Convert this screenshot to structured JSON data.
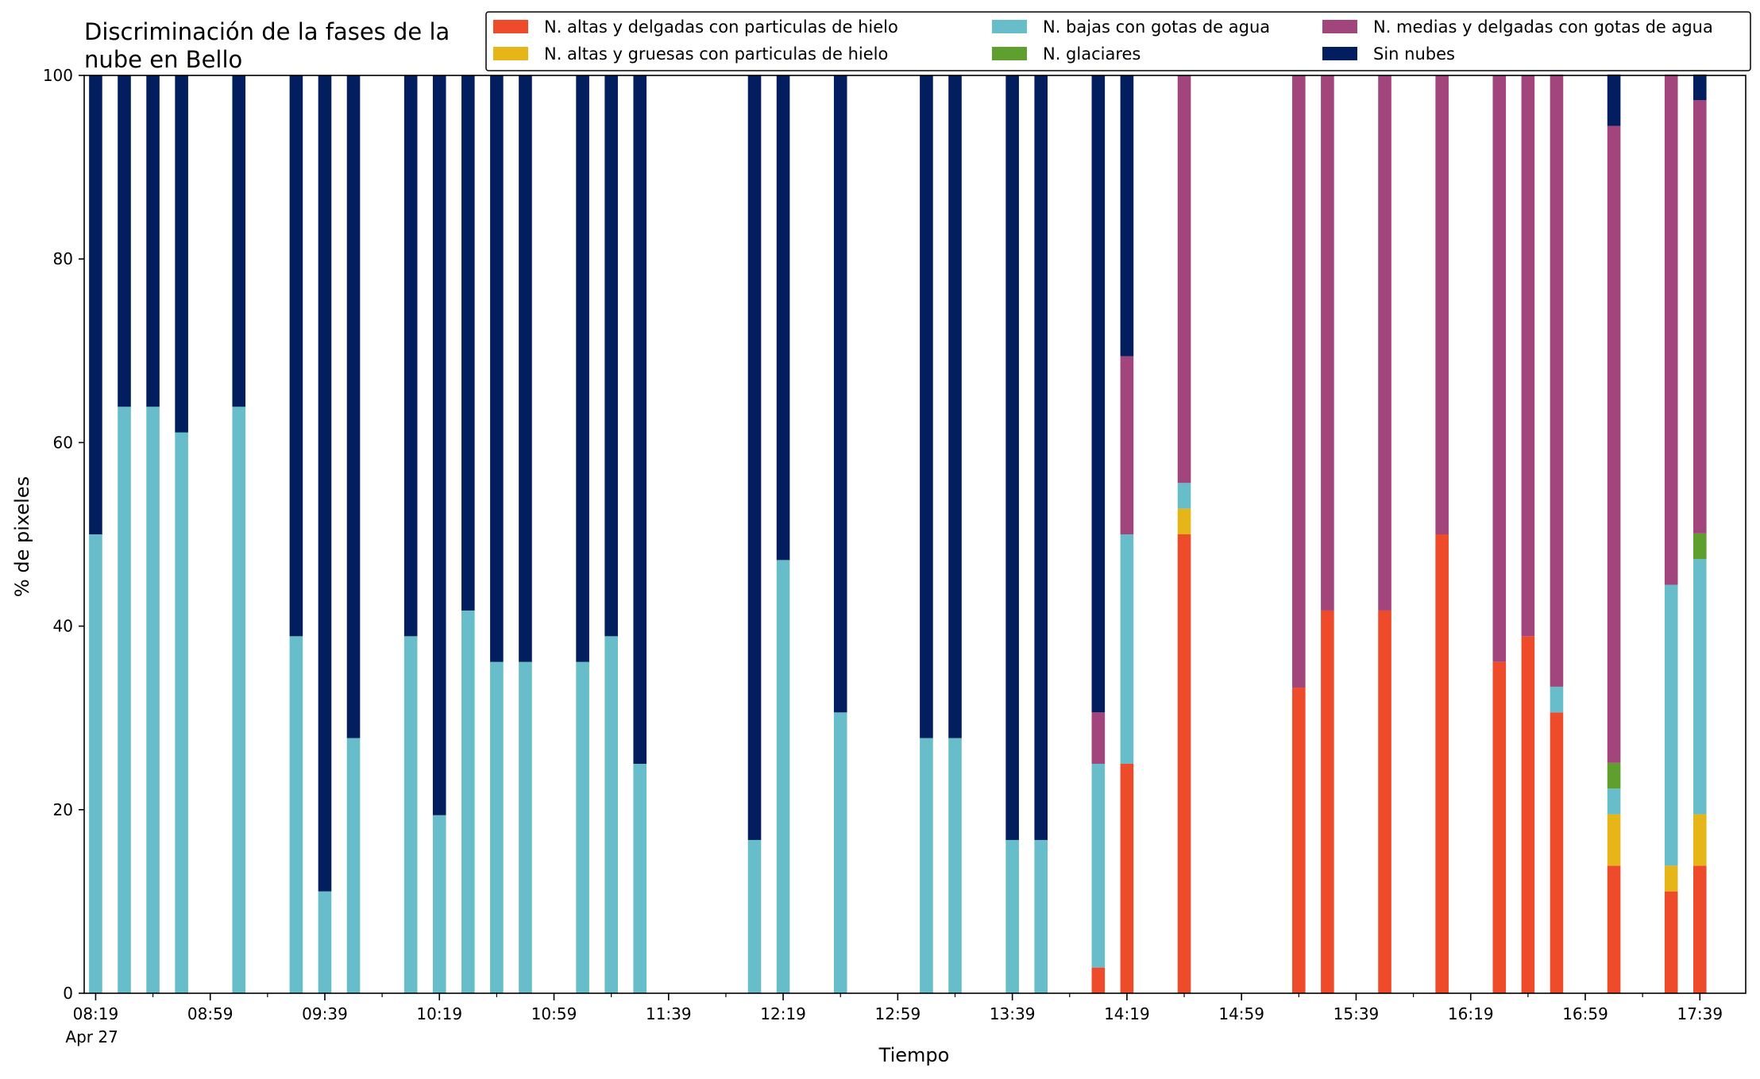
{
  "chart_data": {
    "type": "bar",
    "stacked": true,
    "title_lines": [
      "Discriminación de la fases de la",
      "nube en Bello"
    ],
    "xlabel": "Tiempo",
    "ylabel": "% de pixeles",
    "ylim": [
      0,
      100
    ],
    "yticks": [
      0,
      20,
      40,
      60,
      80,
      100
    ],
    "xlim": [
      "08:15",
      "17:55"
    ],
    "xtick_labels": [
      "08:19",
      "08:59",
      "09:39",
      "10:19",
      "10:59",
      "11:39",
      "12:19",
      "12:59",
      "13:39",
      "14:19",
      "14:59",
      "15:39",
      "16:19",
      "16:59",
      "17:39"
    ],
    "xtick_sublabel": "Apr 27",
    "legend_position": "top-right",
    "grid": false,
    "x": [
      "08:19",
      "08:29",
      "08:39",
      "08:49",
      "09:09",
      "09:29",
      "09:39",
      "09:49",
      "10:09",
      "10:19",
      "10:29",
      "10:39",
      "10:49",
      "11:09",
      "11:19",
      "11:29",
      "12:09",
      "12:19",
      "12:39",
      "13:09",
      "13:19",
      "13:39",
      "13:49",
      "14:09",
      "14:19",
      "14:39",
      "15:19",
      "15:29",
      "15:49",
      "16:09",
      "16:29",
      "16:39",
      "16:49",
      "17:09",
      "17:29",
      "17:39"
    ],
    "series": [
      {
        "name": "N. altas y delgadas con particulas de hielo",
        "color": "#EE4B2B",
        "values": [
          0,
          0,
          0,
          0,
          0,
          0,
          0,
          0,
          0,
          0,
          0,
          0,
          0,
          0,
          0,
          0,
          0,
          0,
          0,
          0,
          0,
          0,
          0,
          2.8,
          25,
          50,
          33.3,
          41.7,
          41.7,
          50,
          36.1,
          38.9,
          30.6,
          13.9,
          11.1,
          13.9
        ]
      },
      {
        "name": "N. altas y gruesas con particulas de hielo",
        "color": "#E6B619",
        "values": [
          0,
          0,
          0,
          0,
          0,
          0,
          0,
          0,
          0,
          0,
          0,
          0,
          0,
          0,
          0,
          0,
          0,
          0,
          0,
          0,
          0,
          0,
          0,
          0,
          0,
          2.8,
          0,
          0,
          0,
          0,
          0,
          0,
          0,
          5.6,
          2.8,
          5.6
        ]
      },
      {
        "name": "N. bajas con gotas de agua",
        "color": "#67BDC9",
        "values": [
          50,
          63.9,
          63.9,
          61.1,
          63.9,
          38.9,
          11.1,
          27.8,
          38.9,
          19.4,
          41.7,
          36.1,
          36.1,
          36.1,
          38.9,
          25,
          16.7,
          47.2,
          30.6,
          27.8,
          27.8,
          16.7,
          16.7,
          22.2,
          25,
          2.8,
          0,
          0,
          0,
          0,
          0,
          0,
          2.8,
          2.8,
          30.6,
          27.8
        ]
      },
      {
        "name": "N. glaciares",
        "color": "#5E9F2E",
        "values": [
          0,
          0,
          0,
          0,
          0,
          0,
          0,
          0,
          0,
          0,
          0,
          0,
          0,
          0,
          0,
          0,
          0,
          0,
          0,
          0,
          0,
          0,
          0,
          0,
          0,
          0,
          0,
          0,
          0,
          0,
          0,
          0,
          0,
          2.8,
          0,
          2.8
        ]
      },
      {
        "name": "N. medias y delgadas con gotas de agua",
        "color": "#A2457C",
        "values": [
          0,
          0,
          0,
          0,
          0,
          0,
          0,
          0,
          0,
          0,
          0,
          0,
          0,
          0,
          0,
          0,
          0,
          0,
          0,
          0,
          0,
          0,
          0,
          5.6,
          19.4,
          44.4,
          66.7,
          58.3,
          58.3,
          50,
          63.9,
          61.1,
          66.7,
          69.4,
          55.6,
          47.2
        ]
      },
      {
        "name": "Sin nubes",
        "color": "#021E5E",
        "values": [
          50,
          36.1,
          36.1,
          38.9,
          36.1,
          61.1,
          88.9,
          72.2,
          61.1,
          80.6,
          58.3,
          63.9,
          63.9,
          63.9,
          61.1,
          75,
          83.3,
          52.8,
          69.4,
          72.2,
          72.2,
          83.3,
          83.3,
          69.4,
          30.6,
          0,
          0,
          0,
          0,
          0,
          0,
          0,
          0,
          5.6,
          0,
          2.8
        ]
      }
    ]
  }
}
